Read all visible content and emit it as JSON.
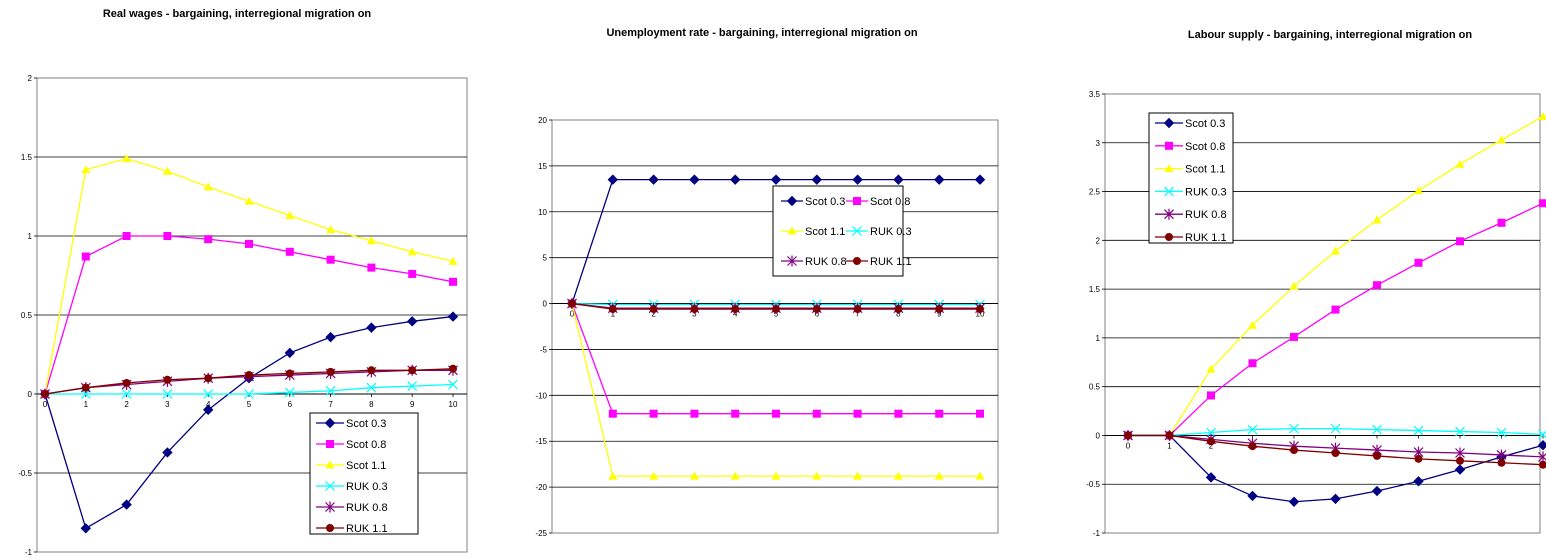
{
  "chart_data": [
    {
      "type": "line",
      "title": "Real wages - bargaining, interregional migration on",
      "xlabel": "",
      "ylabel": "",
      "x": [
        0,
        1,
        2,
        3,
        4,
        5,
        6,
        7,
        8,
        9,
        10
      ],
      "ylim": [
        -1,
        2
      ],
      "yticks": [
        -1,
        -0.5,
        0,
        0.5,
        1,
        1.5,
        2
      ],
      "ytick_labels": [
        "-1",
        "-0.5",
        "0",
        "0.5",
        "1",
        "1.5",
        "2"
      ],
      "grid": "horizontal",
      "legend_position": "bottom-right",
      "legend_layout": "column",
      "series": [
        {
          "name": "Scot 0.3",
          "color": "#000080",
          "marker": "diamond",
          "values": [
            0,
            -0.85,
            -0.7,
            -0.37,
            -0.1,
            0.1,
            0.26,
            0.36,
            0.42,
            0.46,
            0.49
          ]
        },
        {
          "name": "Scot 0.8",
          "color": "#FF00FF",
          "marker": "square",
          "values": [
            0,
            0.87,
            1.0,
            1.0,
            0.98,
            0.95,
            0.9,
            0.85,
            0.8,
            0.76,
            0.71
          ]
        },
        {
          "name": "Scot 1.1",
          "color": "#FFFF00",
          "marker": "triangle",
          "values": [
            0,
            1.42,
            1.49,
            1.41,
            1.31,
            1.22,
            1.13,
            1.04,
            0.97,
            0.9,
            0.84
          ]
        },
        {
          "name": "RUK 0.3",
          "color": "#00FFFF",
          "marker": "x",
          "values": [
            0,
            0.0,
            0.0,
            0.0,
            0.0,
            0.0,
            0.01,
            0.02,
            0.04,
            0.05,
            0.06
          ]
        },
        {
          "name": "RUK 0.8",
          "color": "#800080",
          "marker": "star",
          "values": [
            0,
            0.04,
            0.06,
            0.08,
            0.1,
            0.11,
            0.12,
            0.13,
            0.14,
            0.15,
            0.15
          ]
        },
        {
          "name": "RUK 1.1",
          "color": "#800000",
          "marker": "circle",
          "values": [
            0,
            0.04,
            0.07,
            0.09,
            0.1,
            0.12,
            0.13,
            0.14,
            0.15,
            0.15,
            0.16
          ]
        }
      ]
    },
    {
      "type": "line",
      "title": "Unemployment rate - bargaining, interregional migration on",
      "xlabel": "",
      "ylabel": "",
      "x": [
        0,
        1,
        2,
        3,
        4,
        5,
        6,
        7,
        8,
        9,
        10
      ],
      "ylim": [
        -25,
        20
      ],
      "yticks": [
        -25,
        -20,
        -15,
        -10,
        -5,
        0,
        5,
        10,
        15,
        20
      ],
      "ytick_labels": [
        "-25",
        "-20",
        "-15",
        "-10",
        "-5",
        "0",
        "5",
        "10",
        "15",
        "20"
      ],
      "grid": "horizontal",
      "legend_position": "center",
      "legend_layout": "two-column",
      "series": [
        {
          "name": "Scot 0.3",
          "color": "#000080",
          "marker": "diamond",
          "values": [
            0,
            13.5,
            13.5,
            13.5,
            13.5,
            13.5,
            13.5,
            13.5,
            13.5,
            13.5,
            13.5
          ]
        },
        {
          "name": "Scot 0.8",
          "color": "#FF00FF",
          "marker": "square",
          "values": [
            0,
            -12.0,
            -12.0,
            -12.0,
            -12.0,
            -12.0,
            -12.0,
            -12.0,
            -12.0,
            -12.0,
            -12.0
          ]
        },
        {
          "name": "Scot 1.1",
          "color": "#FFFF00",
          "marker": "triangle",
          "values": [
            0,
            -18.8,
            -18.8,
            -18.8,
            -18.8,
            -18.8,
            -18.8,
            -18.8,
            -18.8,
            -18.8,
            -18.8
          ]
        },
        {
          "name": "RUK 0.3",
          "color": "#00FFFF",
          "marker": "x",
          "values": [
            0,
            -0.1,
            -0.1,
            -0.1,
            -0.1,
            -0.1,
            -0.1,
            -0.1,
            -0.1,
            -0.1,
            -0.1
          ]
        },
        {
          "name": "RUK 0.8",
          "color": "#800080",
          "marker": "star",
          "values": [
            0,
            -0.5,
            -0.5,
            -0.5,
            -0.5,
            -0.5,
            -0.5,
            -0.5,
            -0.5,
            -0.5,
            -0.5
          ]
        },
        {
          "name": "RUK 1.1",
          "color": "#800000",
          "marker": "circle",
          "values": [
            0,
            -0.6,
            -0.6,
            -0.6,
            -0.6,
            -0.6,
            -0.6,
            -0.6,
            -0.6,
            -0.6,
            -0.6
          ]
        }
      ]
    },
    {
      "type": "line",
      "title": "Labour supply - bargaining, interregional migration on",
      "xlabel": "",
      "ylabel": "",
      "x": [
        0,
        1,
        2,
        3,
        4,
        5,
        6,
        7,
        8,
        9,
        10
      ],
      "xtick_labels": [
        "0",
        "1",
        "2",
        "3"
      ],
      "ylim": [
        -1,
        3.5
      ],
      "yticks": [
        -1,
        -0.5,
        0,
        0.5,
        1,
        1.5,
        2,
        2.5,
        3,
        3.5
      ],
      "ytick_labels": [
        "-1",
        "-0.5",
        "0",
        "0.5",
        "1",
        "1.5",
        "2",
        "2.5",
        "3",
        "3.5"
      ],
      "grid": "horizontal",
      "legend_position": "top-left",
      "legend_layout": "column",
      "series": [
        {
          "name": "Scot 0.3",
          "color": "#000080",
          "marker": "diamond",
          "values": [
            0,
            0,
            -0.43,
            -0.62,
            -0.68,
            -0.65,
            -0.57,
            -0.47,
            -0.35,
            -0.22,
            -0.1
          ]
        },
        {
          "name": "Scot 0.8",
          "color": "#FF00FF",
          "marker": "square",
          "values": [
            0,
            0,
            0.41,
            0.74,
            1.01,
            1.29,
            1.54,
            1.77,
            1.99,
            2.18,
            2.38
          ]
        },
        {
          "name": "Scot 1.1",
          "color": "#FFFF00",
          "marker": "triangle",
          "values": [
            0,
            0,
            0.68,
            1.13,
            1.53,
            1.89,
            2.21,
            2.51,
            2.78,
            3.03,
            3.27
          ]
        },
        {
          "name": "RUK 0.3",
          "color": "#00FFFF",
          "marker": "x",
          "values": [
            0,
            0,
            0.03,
            0.06,
            0.07,
            0.07,
            0.06,
            0.05,
            0.04,
            0.03,
            0.01
          ]
        },
        {
          "name": "RUK 0.8",
          "color": "#800080",
          "marker": "star",
          "values": [
            0,
            0,
            -0.04,
            -0.08,
            -0.11,
            -0.13,
            -0.15,
            -0.17,
            -0.18,
            -0.2,
            -0.22
          ]
        },
        {
          "name": "RUK 1.1",
          "color": "#800000",
          "marker": "circle",
          "values": [
            0,
            0,
            -0.06,
            -0.11,
            -0.15,
            -0.18,
            -0.21,
            -0.24,
            -0.26,
            -0.28,
            -0.3
          ]
        }
      ]
    }
  ]
}
